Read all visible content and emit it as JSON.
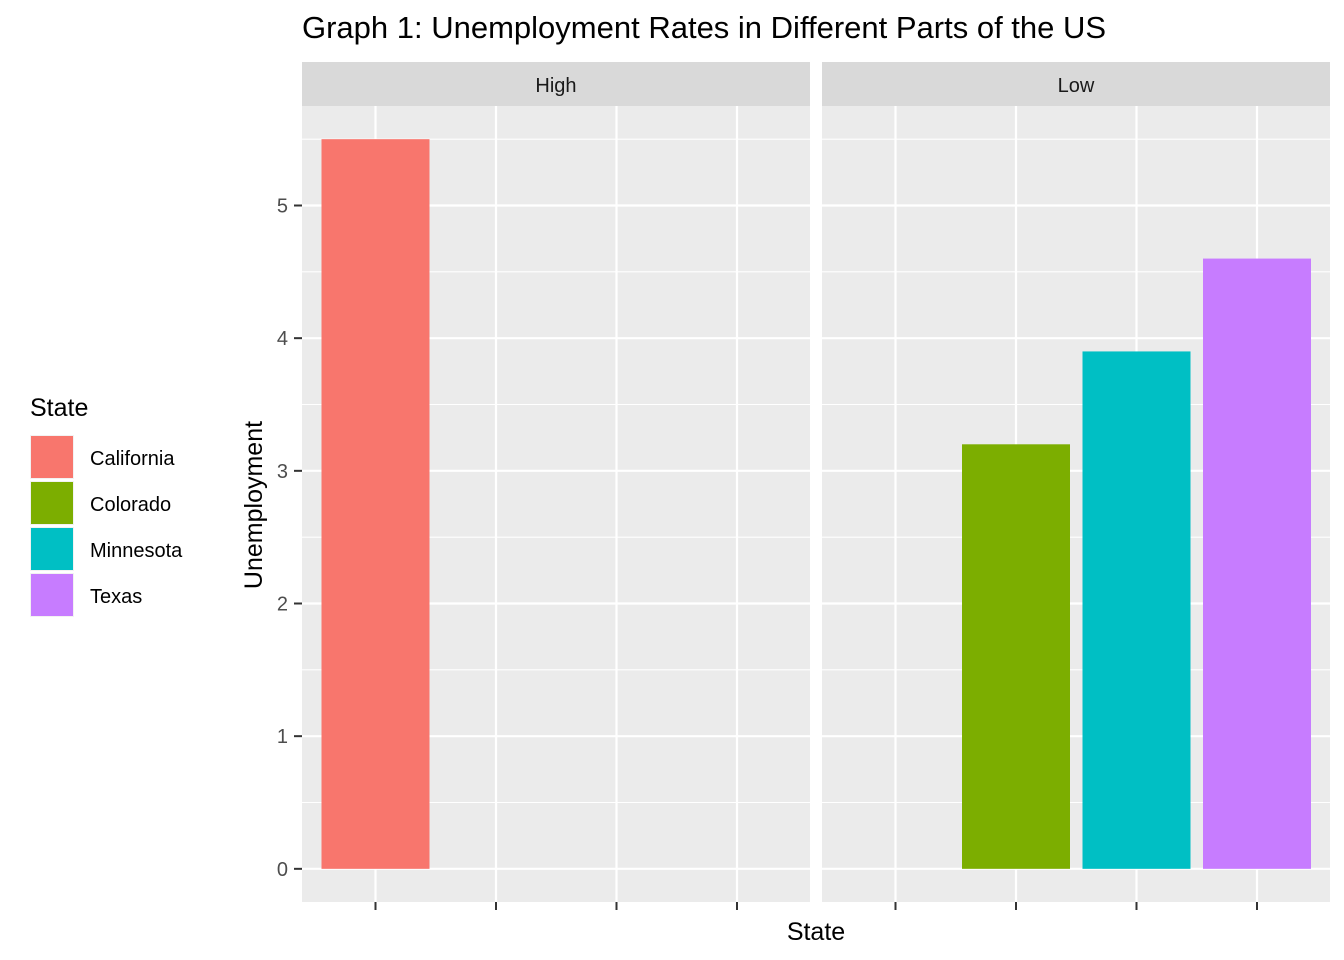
{
  "chart_data": {
    "type": "bar",
    "title": "Graph 1: Unemployment Rates in Different Parts of the US",
    "xlabel": "State",
    "ylabel": "Unemployment",
    "ylim": [
      -0.25,
      5.75
    ],
    "yticks": [
      0,
      1,
      2,
      3,
      4,
      5
    ],
    "grid": true,
    "legend_position": "left",
    "legend_title": "State",
    "x_slots": [
      "California",
      "Colorado",
      "Minnesota",
      "Texas"
    ],
    "facets": [
      {
        "label": "High",
        "bars": [
          {
            "category": "California",
            "value": 5.5
          }
        ]
      },
      {
        "label": "Low",
        "bars": [
          {
            "category": "Colorado",
            "value": 3.2
          },
          {
            "category": "Minnesota",
            "value": 3.9
          },
          {
            "category": "Texas",
            "value": 4.6
          }
        ]
      }
    ],
    "legend": [
      {
        "label": "California",
        "color": "#F8766D"
      },
      {
        "label": "Colorado",
        "color": "#7CAE00"
      },
      {
        "label": "Minnesota",
        "color": "#00BFC4"
      },
      {
        "label": "Texas",
        "color": "#C77CFF"
      }
    ],
    "colors": {
      "panel_background": "#EBEBEB",
      "strip_background": "#D9D9D9",
      "grid_line": "#FFFFFF"
    }
  }
}
